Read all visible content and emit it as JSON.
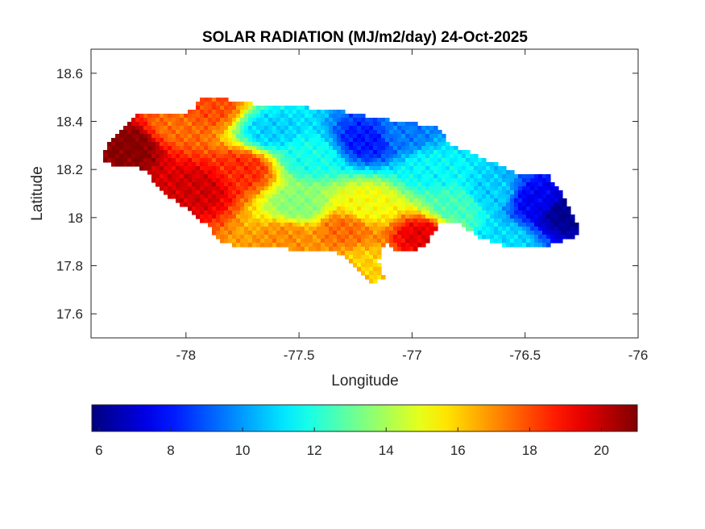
{
  "chart_data": {
    "type": "heatmap",
    "title": "SOLAR RADIATION (MJ/m2/day) 24-Oct-2025",
    "xlabel": "Longitude",
    "ylabel": "Latitude",
    "xlim": [
      -78.42,
      -76
    ],
    "ylim": [
      17.5,
      18.7
    ],
    "xticks": [
      -78,
      -77.5,
      -77,
      -76.5,
      -76
    ],
    "xtick_labels": [
      "-78",
      "-77.5",
      "-77",
      "-76.5",
      "-76"
    ],
    "yticks": [
      17.6,
      17.8,
      18.0,
      18.2,
      18.4,
      18.6
    ],
    "ytick_labels": [
      "17.6",
      "17.8",
      "18",
      "18.2",
      "18.4",
      "18.6"
    ],
    "grid": false,
    "colormap": "jet",
    "colorbar": {
      "orientation": "horizontal",
      "placement": "bottom",
      "range": [
        5.8,
        21
      ],
      "ticks": [
        6,
        8,
        10,
        12,
        14,
        16,
        18,
        20
      ],
      "tick_labels": [
        "6",
        "8",
        "10",
        "12",
        "14",
        "16",
        "18",
        "20"
      ],
      "colors": [
        "#00008f",
        "#0000ff",
        "#00ffff",
        "#ffff00",
        "#ff0000",
        "#800000"
      ]
    },
    "hotspots": [
      {
        "lon": -78.25,
        "lat": 18.3,
        "value": 21.0
      },
      {
        "lon": -77.95,
        "lat": 18.12,
        "value": 19.8
      },
      {
        "lon": -77.75,
        "lat": 18.2,
        "value": 18.5
      },
      {
        "lon": -78.05,
        "lat": 18.38,
        "value": 17.5
      },
      {
        "lon": -77.9,
        "lat": 18.46,
        "value": 18.0
      },
      {
        "lon": -77.62,
        "lat": 18.36,
        "value": 10.8
      },
      {
        "lon": -77.45,
        "lat": 18.25,
        "value": 11.8
      },
      {
        "lon": -77.5,
        "lat": 18.05,
        "value": 13.5
      },
      {
        "lon": -77.55,
        "lat": 17.92,
        "value": 17.0
      },
      {
        "lon": -77.3,
        "lat": 17.95,
        "value": 17.5
      },
      {
        "lon": -77.2,
        "lat": 18.05,
        "value": 15.2
      },
      {
        "lon": -77.2,
        "lat": 17.8,
        "value": 16.0
      },
      {
        "lon": -77.2,
        "lat": 18.32,
        "value": 8.0
      },
      {
        "lon": -77.05,
        "lat": 18.35,
        "value": 9.5
      },
      {
        "lon": -76.92,
        "lat": 18.2,
        "value": 11.5
      },
      {
        "lon": -76.95,
        "lat": 17.92,
        "value": 19.5
      },
      {
        "lon": -76.8,
        "lat": 18.05,
        "value": 12.5
      },
      {
        "lon": -76.65,
        "lat": 18.1,
        "value": 10.8
      },
      {
        "lon": -76.45,
        "lat": 18.07,
        "value": 7.5
      },
      {
        "lon": -76.32,
        "lat": 18.02,
        "value": 6.0
      },
      {
        "lon": -76.6,
        "lat": 17.9,
        "value": 11.0
      }
    ]
  }
}
